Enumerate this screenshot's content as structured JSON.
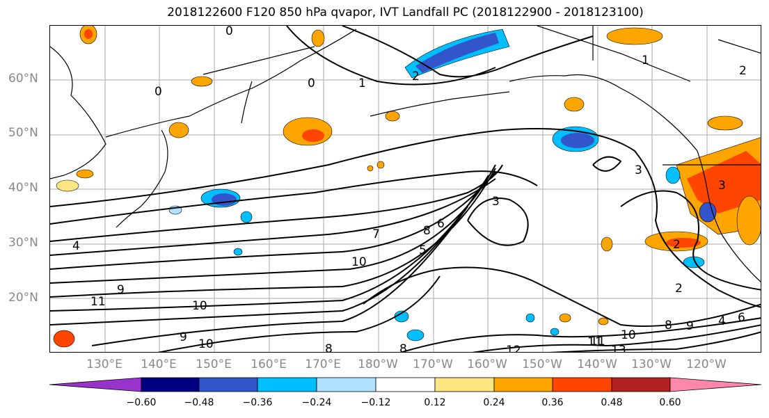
{
  "title": "2018122600 F120 850 hPa qvapor, IVT Landfall PC (2018122900 - 2018123100)",
  "lat_labels": [
    "60°N",
    "50°N",
    "40°N",
    "30°N",
    "20°N"
  ],
  "lon_labels": [
    "130°E",
    "140°E",
    "150°E",
    "160°E",
    "170°E",
    "180°W",
    "170°W",
    "160°W",
    "150°W",
    "140°W",
    "130°W",
    "120°W"
  ],
  "colorbar": {
    "colors": [
      "#9933cc",
      "#000080",
      "#3355cc",
      "#00bfff",
      "#b0e2ff",
      "#ffffff",
      "#ffe680",
      "#ffa500",
      "#ff4500",
      "#b22222",
      "#ff88aa"
    ],
    "tick_labels": [
      "−0.60",
      "−0.48",
      "−0.36",
      "−0.24",
      "−0.12",
      "0.12",
      "0.24",
      "0.36",
      "0.48",
      "0.60"
    ]
  },
  "contour_labels": [
    "0",
    "0",
    "0",
    "1",
    "2",
    "1",
    "2",
    "3",
    "3",
    "3",
    "4",
    "5",
    "6",
    "7",
    "8",
    "9",
    "10",
    "11",
    "10",
    "9",
    "10",
    "11",
    "8",
    "10",
    "11",
    "13",
    "12",
    "8",
    "8",
    "9",
    "2",
    "2",
    "4",
    "6"
  ]
}
